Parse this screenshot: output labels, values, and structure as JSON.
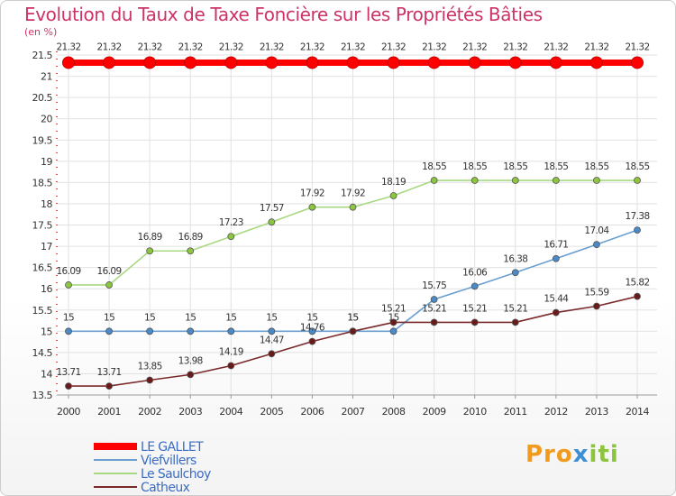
{
  "title": "Evolution du Taux de Taxe Foncière sur les Propriétés Bâties",
  "unit_label": "(en %)",
  "logo_text": "Proxiti",
  "colors": {
    "title": "#cc3366",
    "tick_label": "#333333",
    "grid": "#e2e2e2",
    "axis_marker": "#ff0000"
  },
  "chart_data": {
    "type": "line",
    "title": "Evolution du Taux de Taxe Foncière sur les Propriétés Bâties",
    "ylabel": "(en %)",
    "x": [
      2000,
      2001,
      2002,
      2003,
      2004,
      2005,
      2006,
      2007,
      2008,
      2009,
      2010,
      2011,
      2012,
      2013,
      2014
    ],
    "ylim": [
      13.5,
      21.5
    ],
    "yticks": [
      13.5,
      14,
      14.5,
      15,
      15.5,
      16,
      16.5,
      17,
      17.5,
      18,
      18.5,
      19,
      19.5,
      20,
      20.5,
      21,
      21.5
    ],
    "grid": true,
    "legend_position": "bottom-left",
    "series": [
      {
        "name": "LE GALLET",
        "color": "#ff0000",
        "marker_color": "#ff0000",
        "values": [
          21.32,
          21.32,
          21.32,
          21.32,
          21.32,
          21.32,
          21.32,
          21.32,
          21.32,
          21.32,
          21.32,
          21.32,
          21.32,
          21.32,
          21.32
        ],
        "labels": [
          "21.32",
          "21.32",
          "21.32",
          "21.32",
          "21.32",
          "21.32",
          "21.32",
          "21.32",
          "21.32",
          "21.32",
          "21.32",
          "21.32",
          "21.32",
          "21.32",
          "21.32"
        ]
      },
      {
        "name": "Viefvillers",
        "color": "#6a9fd0",
        "marker_color": "#4a8ac8",
        "values": [
          15,
          15,
          15,
          15,
          15,
          15,
          15,
          15,
          15,
          15.75,
          16.06,
          16.38,
          16.71,
          17.04,
          17.38
        ],
        "labels": [
          "15",
          "15",
          "15",
          "15",
          "15",
          "15",
          "15",
          "15",
          "15",
          "15.75",
          "16.06",
          "16.38",
          "16.71",
          "17.04",
          "17.38"
        ]
      },
      {
        "name": "Le Saulchoy",
        "color": "#a8d880",
        "marker_color": "#8cc63e",
        "values": [
          16.09,
          16.09,
          16.89,
          16.89,
          17.23,
          17.57,
          17.92,
          17.92,
          18.19,
          18.55,
          18.55,
          18.55,
          18.55,
          18.55,
          18.55
        ],
        "labels": [
          "16.09",
          "16.09",
          "16.89",
          "16.89",
          "17.23",
          "17.57",
          "17.92",
          "17.92",
          "18.19",
          "18.55",
          "18.55",
          "18.55",
          "18.55",
          "18.55",
          "18.55"
        ]
      },
      {
        "name": "Catheux",
        "color": "#7a2a2a",
        "marker_color": "#6a1a1a",
        "values": [
          13.71,
          13.71,
          13.85,
          13.98,
          14.19,
          14.47,
          14.76,
          15,
          15.21,
          15.21,
          15.21,
          15.21,
          15.44,
          15.59,
          15.82
        ],
        "labels": [
          "13.71",
          "13.71",
          "13.85",
          "13.98",
          "14.19",
          "14.47",
          "14.76",
          "15",
          "15.21",
          "15.21",
          "15.21",
          "15.21",
          "15.44",
          "15.59",
          "15.82"
        ]
      }
    ]
  }
}
